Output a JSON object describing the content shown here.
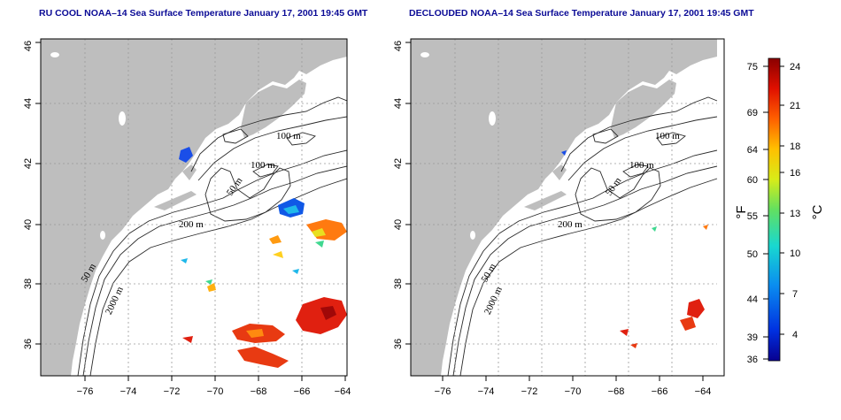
{
  "panels": [
    {
      "title": "RU COOL NOAA–14 Sea Surface Temperature January 17, 2001 19:45 GMT",
      "contour_labels": [
        "100 m",
        "100 m",
        "50 m",
        "200 m",
        "50 m",
        "2000 m"
      ]
    },
    {
      "title": "DECLOUDED NOAA–14 Sea Surface Temperature January 17, 2001 19:45 GMT",
      "contour_labels": [
        "100 m",
        "100 m",
        "50 m",
        "200 m",
        "50 m",
        "2000 m"
      ]
    }
  ],
  "axes": {
    "lon_ticks": [
      "−76",
      "−74",
      "−72",
      "−70",
      "−68",
      "−66",
      "−64"
    ],
    "lat_ticks": [
      "36",
      "38",
      "40",
      "42",
      "44",
      "46"
    ]
  },
  "colorbar": {
    "fahrenheit_label": "°F",
    "celsius_label": "°C",
    "fahrenheit_ticks": [
      "75",
      "69",
      "64",
      "60",
      "55",
      "50",
      "44",
      "39",
      "36"
    ],
    "celsius_ticks": [
      "24",
      "21",
      "18",
      "16",
      "13",
      "10",
      "7",
      "4"
    ],
    "colors": [
      "#08008f",
      "#0030e0",
      "#0a8df0",
      "#18d8d0",
      "#62e060",
      "#d8ec18",
      "#ffc000",
      "#ff6000",
      "#e01000",
      "#8a0000"
    ]
  },
  "colors": {
    "land": "#bebebe",
    "title": "#0b0b96",
    "grid": "#9a9a9a"
  }
}
